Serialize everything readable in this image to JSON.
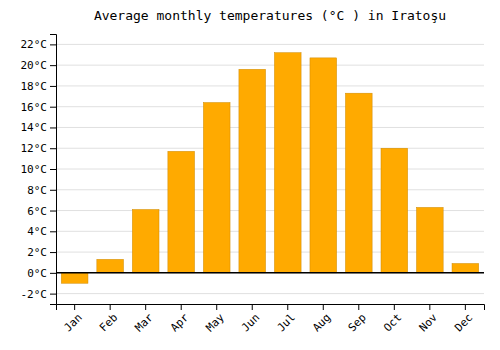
{
  "chart_data": {
    "type": "bar",
    "title": "Average monthly temperatures (°C ) in Iratoşu",
    "categories": [
      "Jan",
      "Feb",
      "Mar",
      "Apr",
      "May",
      "Jun",
      "Jul",
      "Aug",
      "Sep",
      "Oct",
      "Nov",
      "Dec"
    ],
    "values": [
      -1.0,
      1.3,
      6.1,
      11.7,
      16.4,
      19.6,
      21.2,
      20.7,
      17.3,
      12.0,
      6.3,
      0.9
    ],
    "color": "#FFAA00",
    "ylim": [
      -3,
      23
    ],
    "yticks": [
      {
        "value": -2,
        "label": "-2°C"
      },
      {
        "value": 0,
        "label": "0°C"
      },
      {
        "value": 2,
        "label": "2°C"
      },
      {
        "value": 4,
        "label": "4°C"
      },
      {
        "value": 6,
        "label": "6°C"
      },
      {
        "value": 8,
        "label": "8°C"
      },
      {
        "value": 10,
        "label": "10°C"
      },
      {
        "value": 12,
        "label": "12°C"
      },
      {
        "value": 14,
        "label": "14°C"
      },
      {
        "value": 16,
        "label": "16°C"
      },
      {
        "value": 18,
        "label": "18°C"
      },
      {
        "value": 20,
        "label": "20°C"
      },
      {
        "value": 22,
        "label": "22°C"
      }
    ],
    "grid": true
  }
}
